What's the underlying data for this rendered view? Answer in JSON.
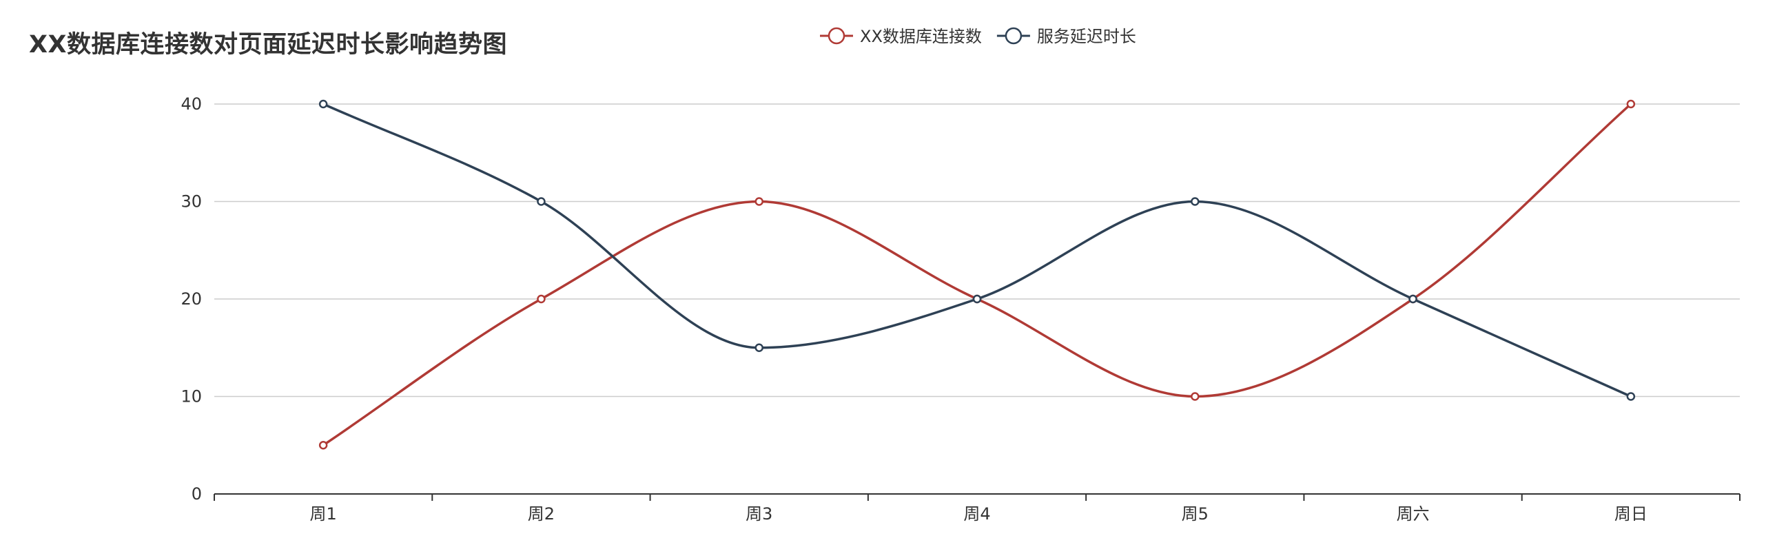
{
  "chart_data": {
    "type": "line",
    "title": "XX数据库连接数对页面延迟时长影响趋势图",
    "categories": [
      "周1",
      "周2",
      "周3",
      "周4",
      "周5",
      "周六",
      "周日"
    ],
    "ylim": [
      0,
      40
    ],
    "yticks": [
      0,
      10,
      20,
      30,
      40
    ],
    "grid": true,
    "smooth": true,
    "legend_position": "top-center",
    "series": [
      {
        "name": "XX数据库连接数",
        "color": "#b03a35",
        "values": [
          5,
          20,
          30,
          20,
          10,
          20,
          40
        ]
      },
      {
        "name": "服务延迟时长",
        "color": "#2e4155",
        "values": [
          40,
          30,
          15,
          20,
          30,
          20,
          10
        ]
      }
    ]
  }
}
